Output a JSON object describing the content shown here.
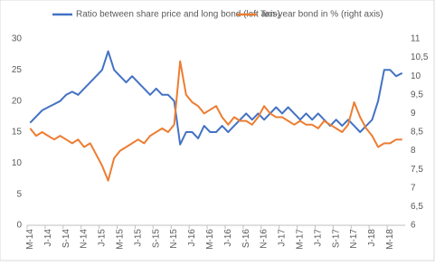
{
  "chart_data": {
    "type": "line",
    "categories": [
      "M-14",
      null,
      null,
      "J-14",
      null,
      null,
      "S-14",
      null,
      null,
      "N-14",
      null,
      null,
      "J-15",
      null,
      null,
      "M-15",
      null,
      null,
      "J-15",
      null,
      null,
      "S-15",
      null,
      null,
      "N-15",
      null,
      null,
      "J-16",
      null,
      null,
      "M-16",
      null,
      null,
      "J-16",
      null,
      null,
      "S-16",
      null,
      null,
      "N-16",
      null,
      null,
      "J-17",
      null,
      null,
      "M-17",
      null,
      null,
      "J-17",
      null,
      null,
      "S-17",
      null,
      null,
      "N-17",
      null,
      null,
      "J-18",
      null,
      null,
      "M-18",
      null,
      null
    ],
    "series": [
      {
        "name": "Ratio between share price and long bond (left axis)",
        "color": "#4472c4",
        "values": [
          16.5,
          17.5,
          18.5,
          19,
          19.5,
          20,
          21,
          21.5,
          21,
          22,
          23,
          24,
          25,
          28,
          25,
          24,
          23,
          24,
          23,
          22,
          21,
          22,
          21,
          21,
          20,
          13,
          15,
          15,
          14,
          16,
          15,
          15,
          16,
          15,
          16,
          17,
          18,
          17,
          18,
          17,
          18,
          19,
          18,
          19,
          18,
          17,
          18,
          17,
          18,
          17,
          16,
          17,
          16,
          17,
          16,
          15,
          16,
          17,
          20,
          25,
          25,
          24,
          24.5
        ]
      },
      {
        "name": "Ten-year bond in % (right axis)",
        "color": "#ed7d31",
        "axis": "y2",
        "values": [
          8.6,
          8.4,
          8.5,
          8.4,
          8.3,
          8.4,
          8.3,
          8.2,
          8.3,
          8.1,
          8.2,
          7.9,
          7.6,
          7.2,
          7.8,
          8.0,
          8.1,
          8.2,
          8.3,
          8.2,
          8.4,
          8.5,
          8.6,
          8.5,
          8.7,
          10.4,
          9.5,
          9.3,
          9.2,
          9.0,
          9.1,
          9.2,
          8.9,
          8.7,
          8.9,
          8.8,
          8.8,
          8.7,
          8.9,
          9.2,
          9.0,
          8.9,
          8.9,
          8.8,
          8.7,
          8.8,
          8.7,
          8.7,
          8.6,
          8.8,
          8.7,
          8.6,
          8.5,
          8.7,
          9.3,
          8.9,
          8.6,
          8.4,
          8.1,
          8.2,
          8.2,
          8.3,
          8.3
        ]
      }
    ],
    "ylim": [
      0,
      30
    ],
    "yticks": [
      0,
      5,
      10,
      15,
      20,
      25,
      30
    ],
    "y2lim": [
      6,
      11
    ],
    "y2ticks": [
      6,
      {
        "value": 6.5,
        "label": "6,5"
      },
      7,
      {
        "value": 7.5,
        "label": "7,5"
      },
      8,
      {
        "value": 8.5,
        "label": "8,5"
      },
      9,
      {
        "value": 9.5,
        "label": "9,5"
      },
      10,
      {
        "value": 10.5,
        "label": "10,5"
      },
      11
    ],
    "grid": false
  }
}
